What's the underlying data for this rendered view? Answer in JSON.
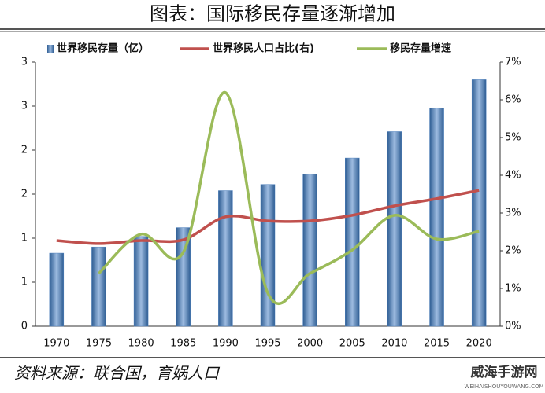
{
  "chart_data": {
    "type": "bar-line",
    "title": "图表：国际移民存量逐渐增加",
    "source": "资料来源：联合国，育娲人口",
    "watermark": {
      "text": "威海手游网",
      "sub": "WEIHAISHOUYOUWANG.COM"
    },
    "categories": [
      "1970",
      "1975",
      "1980",
      "1985",
      "1990",
      "1995",
      "2000",
      "2005",
      "2010",
      "2015",
      "2020"
    ],
    "series": [
      {
        "name": "世界移民存量（亿）",
        "type": "bar",
        "color": "#4f81bd",
        "values": [
          0.83,
          0.9,
          1.02,
          1.12,
          1.54,
          1.61,
          1.73,
          1.91,
          2.21,
          2.48,
          2.8
        ]
      },
      {
        "name": "世界移民人口占比(右)",
        "type": "line",
        "axis": "y2",
        "color": "#c0504d",
        "values": [
          2.27,
          2.19,
          2.27,
          2.29,
          2.9,
          2.79,
          2.79,
          2.94,
          3.19,
          3.38,
          3.6
        ]
      },
      {
        "name": "移民存量增速",
        "type": "line",
        "axis": "y2",
        "color": "#9bbb59",
        "values": [
          null,
          1.4,
          2.44,
          1.96,
          6.19,
          0.88,
          1.4,
          2.02,
          2.94,
          2.31,
          2.52
        ]
      }
    ],
    "ylim": [
      0,
      3
    ],
    "yticks": [
      0,
      {
        "value": 0.5,
        "label": "1"
      },
      1,
      {
        "value": 1.5,
        "label": "2"
      },
      2,
      {
        "value": 2.5,
        "label": "3"
      },
      3
    ],
    "y2lim": [
      0,
      7
    ],
    "y2ticks": [
      {
        "value": 0,
        "label": "0%"
      },
      {
        "value": 1,
        "label": "1%"
      },
      {
        "value": 2,
        "label": "2%"
      },
      {
        "value": 3,
        "label": "3%"
      },
      {
        "value": 4,
        "label": "4%"
      },
      {
        "value": 5,
        "label": "5%"
      },
      {
        "value": 6,
        "label": "6%"
      },
      {
        "value": 7,
        "label": "7%"
      }
    ]
  }
}
